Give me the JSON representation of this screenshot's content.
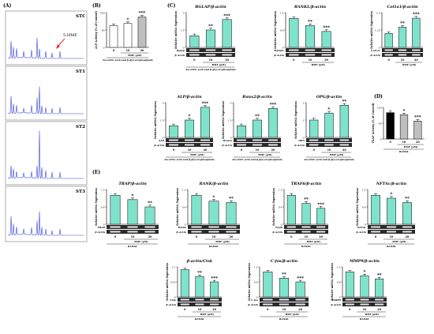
{
  "panel_labels": {
    "a": "(A)",
    "b": "(B)",
    "c": "(C)",
    "d": "(D)",
    "e": "(E)"
  },
  "chromatograms": [
    {
      "label": "STC",
      "annotation": "5-HMF"
    },
    {
      "label": "ST1"
    },
    {
      "label": "ST2"
    },
    {
      "label": "ST3"
    }
  ],
  "common": {
    "x_ticks": [
      "0",
      "10",
      "20"
    ],
    "dose_label": "BMF (μM)",
    "treat_osteoblast": "Ascorbic acid and β-glycerophosphate",
    "treat_osteoclast": "RANKL",
    "ylabel_mrna": "Relative mRNA Expression",
    "ylabel_alp": "ALP Activity (% of Control)",
    "ylabel_trap": "TRAP Activity (% of Control)",
    "ref_gene": "β-Actin"
  },
  "colors": {
    "teal": "#7fe3cc",
    "white": "#ffffff",
    "grey": "#bfbfbf",
    "black": "#000000",
    "trace": "#3a46d6",
    "arrow": "#e0322b"
  },
  "chart_data": [
    {
      "id": "alp_activity",
      "type": "bar",
      "title": "",
      "ylabel": "ALP Activity (% of Control)",
      "categories": [
        "0",
        "10",
        "20"
      ],
      "values": [
        100,
        110,
        140
      ],
      "ylim": [
        0,
        160
      ],
      "sig": [
        "",
        "*",
        "***"
      ],
      "fills": [
        "white",
        "white",
        "grey"
      ],
      "bands": [],
      "treatment": "Ascorbic acid and β-glycerophosphate"
    },
    {
      "id": "bglap",
      "type": "bar",
      "title": "BGLAP/β-actin",
      "ylabel": "Relative mRNA Expression",
      "categories": [
        "0",
        "10",
        "20"
      ],
      "values": [
        1.0,
        1.5,
        2.4
      ],
      "ylim": [
        0,
        3
      ],
      "sig": [
        "",
        "**",
        "***"
      ],
      "fills": [
        "teal",
        "teal",
        "teal"
      ],
      "bands": [
        "Bglap",
        "β-Actin"
      ],
      "treatment": "Ascorbic acid and β-glycerophosphate"
    },
    {
      "id": "rankl",
      "type": "bar",
      "title": "RANKL/β-actin",
      "ylabel": "Relative mRNA Expression",
      "categories": [
        "0",
        "10",
        "20"
      ],
      "values": [
        1.0,
        0.75,
        0.55
      ],
      "ylim": [
        0,
        1.2
      ],
      "sig": [
        "",
        "**",
        "***"
      ],
      "fills": [
        "teal",
        "teal",
        "teal"
      ],
      "bands": [
        "RANKL",
        "β-Actin"
      ],
      "treatment": ""
    },
    {
      "id": "col1a1",
      "type": "bar",
      "title": "Col1a1/β-actin",
      "ylabel": "Relative mRNA Expression",
      "categories": [
        "0",
        "10",
        "20"
      ],
      "values": [
        1.0,
        1.45,
        2.1
      ],
      "ylim": [
        0,
        2.5
      ],
      "sig": [
        "",
        "**",
        "***"
      ],
      "fills": [
        "teal",
        "teal",
        "teal"
      ],
      "bands": [
        "Col1a1",
        "β-Actin"
      ],
      "treatment": ""
    },
    {
      "id": "alp",
      "type": "bar",
      "title": "ALP/β-actin",
      "ylabel": "Relative mRNA Expression",
      "categories": [
        "0",
        "10",
        "20"
      ],
      "values": [
        1.0,
        1.5,
        2.6
      ],
      "ylim": [
        0,
        3
      ],
      "sig": [
        "",
        "*",
        "***"
      ],
      "fills": [
        "teal",
        "teal",
        "teal"
      ],
      "bands": [
        "ALP",
        "β-Actin"
      ],
      "treatment": "Ascorbic acid and β-glycerophosphate"
    },
    {
      "id": "runx2",
      "type": "bar",
      "title": "Runx2/β-actin",
      "ylabel": "Relative mRNA Expression",
      "categories": [
        "0",
        "10",
        "20"
      ],
      "values": [
        1.0,
        1.5,
        2.5
      ],
      "ylim": [
        0,
        3
      ],
      "sig": [
        "",
        "**",
        "***"
      ],
      "fills": [
        "teal",
        "teal",
        "teal"
      ],
      "bands": [
        "Runx2",
        "β-Actin"
      ],
      "treatment": "Ascorbic acid and β-glycerophosphate"
    },
    {
      "id": "opg",
      "type": "bar",
      "title": "OPG/β-actin",
      "ylabel": "Relative mRNA Expression",
      "categories": [
        "0",
        "10",
        "20"
      ],
      "values": [
        1.0,
        1.4,
        1.85
      ],
      "ylim": [
        0,
        2
      ],
      "sig": [
        "",
        "*",
        "**"
      ],
      "fills": [
        "teal",
        "teal",
        "teal"
      ],
      "bands": [
        "OPG",
        "β-Actin"
      ],
      "treatment": "Ascorbic acid and β-glycerophosphate"
    },
    {
      "id": "trap_activity",
      "type": "bar",
      "title": "",
      "ylabel": "TRAP Activity (% of Control)",
      "categories": [
        "0",
        "10",
        "20"
      ],
      "values": [
        100,
        92,
        68
      ],
      "ylim": [
        0,
        120
      ],
      "sig": [
        "",
        "*",
        "***"
      ],
      "fills": [
        "black",
        "grey",
        "grey"
      ],
      "bands": [],
      "treatment": "RANKL"
    },
    {
      "id": "trap",
      "type": "bar",
      "title": "TRAP/β-actin",
      "ylabel": "Relative mRNA Expression",
      "categories": [
        "0",
        "10",
        "20"
      ],
      "values": [
        1.0,
        0.85,
        0.6
      ],
      "ylim": [
        0,
        1.2
      ],
      "sig": [
        "",
        "*",
        "**"
      ],
      "fills": [
        "teal",
        "teal",
        "teal"
      ],
      "bands": [
        "TRAP",
        "β-Actin"
      ],
      "treatment": "RANKL"
    },
    {
      "id": "rank",
      "type": "bar",
      "title": "RANK/β-actin",
      "ylabel": "Relative mRNA Expression",
      "categories": [
        "0",
        "10",
        "20"
      ],
      "values": [
        1.0,
        0.8,
        0.75
      ],
      "ylim": [
        0,
        1.2
      ],
      "sig": [
        "",
        "*",
        "**"
      ],
      "fills": [
        "teal",
        "teal",
        "teal"
      ],
      "bands": [
        "RANK",
        "β-Actin"
      ],
      "treatment": "RANKL"
    },
    {
      "id": "traf6",
      "type": "bar",
      "title": "TRAF6/β-actin",
      "ylabel": "Relative mRNA Expression",
      "categories": [
        "0",
        "10",
        "20"
      ],
      "values": [
        1.0,
        0.72,
        0.55
      ],
      "ylim": [
        0,
        1.2
      ],
      "sig": [
        "",
        "**",
        "***"
      ],
      "fills": [
        "teal",
        "teal",
        "teal"
      ],
      "bands": [
        "Traf6",
        "β-Actin"
      ],
      "treatment": "RANKL"
    },
    {
      "id": "nfatc",
      "type": "bar",
      "title": "NFTAc/β-actin",
      "ylabel": "Relative mRNA Expression",
      "categories": [
        "0",
        "10",
        "20"
      ],
      "values": [
        1.0,
        0.9,
        0.75
      ],
      "ylim": [
        0,
        1.2
      ],
      "sig": [
        "",
        "*",
        "**"
      ],
      "fills": [
        "teal",
        "teal",
        "teal"
      ],
      "bands": [
        "NFTAc",
        "β-Actin"
      ],
      "treatment": "RANKL"
    },
    {
      "id": "ctsk",
      "type": "bar",
      "title": "β-actin/Ctsk",
      "ylabel": "Relative mRNA Expression",
      "categories": [
        "0",
        "10",
        "20"
      ],
      "values": [
        1.0,
        0.75,
        0.55
      ],
      "ylim": [
        0,
        1.1
      ],
      "sig": [
        "",
        "**",
        "***"
      ],
      "fills": [
        "teal",
        "teal",
        "teal"
      ],
      "bands": [
        "Ctsk",
        "β-Actin"
      ],
      "treatment": "RANKL"
    },
    {
      "id": "cfos",
      "type": "bar",
      "title": "C-fos/β-actin",
      "ylabel": "Relative mRNA Expression",
      "categories": [
        "0",
        "10",
        "20"
      ],
      "values": [
        1.0,
        0.75,
        0.6
      ],
      "ylim": [
        0,
        1.2
      ],
      "sig": [
        "",
        "**",
        "***"
      ],
      "fills": [
        "teal",
        "teal",
        "teal"
      ],
      "bands": [
        "C-fos",
        "β-Actin"
      ],
      "treatment": "RANKL"
    },
    {
      "id": "mmp9",
      "type": "bar",
      "title": "MMP9/β-actin",
      "ylabel": "Relative mRNA Expression",
      "categories": [
        "0",
        "10",
        "20"
      ],
      "values": [
        1.0,
        0.85,
        0.72
      ],
      "ylim": [
        0,
        1.2
      ],
      "sig": [
        "",
        "*",
        "**"
      ],
      "fills": [
        "teal",
        "teal",
        "teal"
      ],
      "bands": [
        "MMP9",
        "β-Actin"
      ],
      "treatment": "RANKL"
    }
  ]
}
